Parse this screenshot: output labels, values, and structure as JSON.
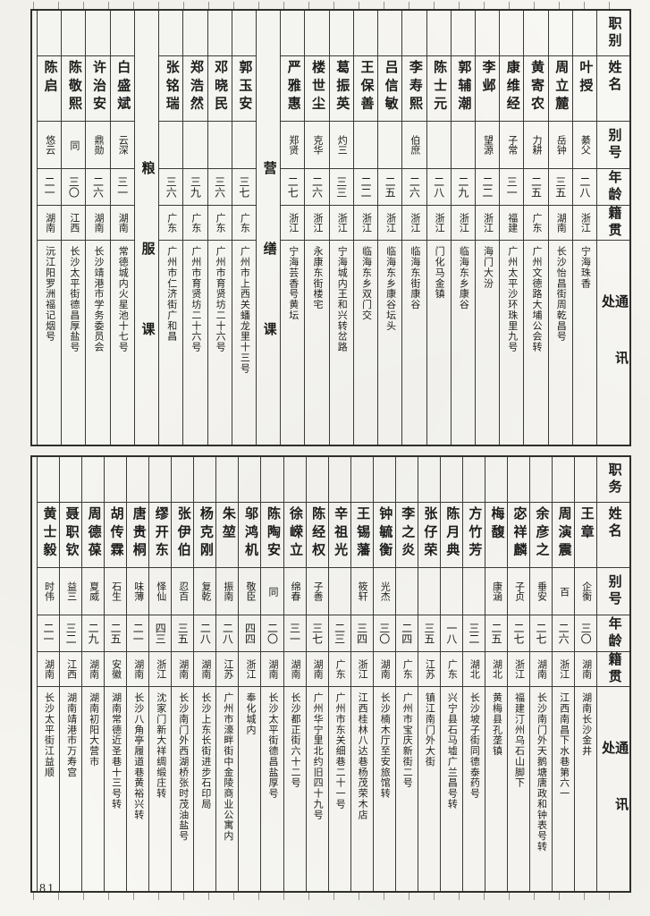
{
  "page": {
    "number": "81",
    "paper_color": "#f5f4ef",
    "ink_color": "#1d1d1d"
  },
  "top_table": {
    "headers": {
      "role": "职别",
      "name": "姓名",
      "alias": "别号",
      "age": "年龄",
      "origin": "籍贯",
      "address": "通讯处"
    },
    "columns": [
      {
        "type": "person",
        "name": "陈启",
        "alias": "悠云",
        "age": "二一",
        "origin": "湖南",
        "address": "沅江阳罗洲福记烟号"
      },
      {
        "type": "person",
        "name": "陈敬熙",
        "alias": "同",
        "age": "三〇",
        "origin": "江西",
        "address": "长沙太平街德昌厚盐号"
      },
      {
        "type": "person",
        "name": "许治安",
        "alias": "鼎勋",
        "age": "二六",
        "origin": "湖南",
        "address": "长沙靖港市学务委员会"
      },
      {
        "type": "person",
        "name": "白盛斌",
        "alias": "云深",
        "age": "三一",
        "origin": "湖南",
        "address": "常德城内火星池十七号"
      },
      {
        "type": "section",
        "label": "粮服课"
      },
      {
        "type": "person",
        "name": "张铭瑞",
        "alias": "",
        "age": "三六",
        "origin": "广东",
        "address": "广州市仁济街广和昌"
      },
      {
        "type": "person",
        "name": "郑浩然",
        "alias": "",
        "age": "三九",
        "origin": "广东",
        "address": "广州市育贤坊二十六号"
      },
      {
        "type": "person",
        "name": "邓晓民",
        "alias": "",
        "age": "三六",
        "origin": "广东",
        "address": "广州市育贤坊二十六号"
      },
      {
        "type": "person",
        "name": "郭玉安",
        "alias": "",
        "age": "三七",
        "origin": "广东",
        "address": "广州市上西关蟠龙里十三号"
      },
      {
        "type": "section",
        "label": "营缮课"
      },
      {
        "type": "person",
        "name": "严雅惠",
        "alias": "郑贤",
        "age": "二七",
        "origin": "浙江",
        "address": "宁海芸香号黄坛"
      },
      {
        "type": "person",
        "name": "楼世尘",
        "alias": "克华",
        "age": "二六",
        "origin": "浙江",
        "address": "永康东街楼宅"
      },
      {
        "type": "person",
        "name": "葛振英",
        "alias": "灼三",
        "age": "三三",
        "origin": "浙江",
        "address": "宁海城内王和兴转岔路"
      },
      {
        "type": "person",
        "name": "王保善",
        "alias": "",
        "age": "二二",
        "origin": "浙江",
        "address": "临海东乡双门交"
      },
      {
        "type": "person",
        "name": "吕信敏",
        "alias": "",
        "age": "二五",
        "origin": "浙江",
        "address": "临海东乡康谷坛头"
      },
      {
        "type": "person",
        "name": "李寿熙",
        "alias": "伯庶",
        "age": "二六",
        "origin": "浙江",
        "address": "临海东街康谷"
      },
      {
        "type": "person",
        "name": "陈士元",
        "alias": "",
        "age": "二八",
        "origin": "浙江",
        "address": "门化马金镇"
      },
      {
        "type": "person",
        "name": "郭辅潮",
        "alias": "",
        "age": "二九",
        "origin": "浙江",
        "address": "临海东乡康谷"
      },
      {
        "type": "person",
        "name": "李邺",
        "alias": "望源",
        "age": "二二",
        "origin": "浙江",
        "address": "海门大汾"
      },
      {
        "type": "person",
        "name": "康维经",
        "alias": "子常",
        "age": "三一",
        "origin": "福建",
        "address": "广州太平沙环珠里九号"
      },
      {
        "type": "person",
        "name": "黄寄农",
        "alias": "力耕",
        "age": "二五",
        "origin": "广东",
        "address": "广州文德路大埔公会转"
      },
      {
        "type": "person",
        "name": "周立麓",
        "alias": "岳钟",
        "age": "三五",
        "origin": "湖南",
        "address": "长沙怡昌街周乾昌号"
      },
      {
        "type": "person",
        "name": "叶授",
        "alias": "綦父",
        "age": "二八",
        "origin": "浙江",
        "address": "宁海珠香"
      }
    ]
  },
  "bottom_table": {
    "headers": {
      "role": "职务",
      "name": "姓名",
      "alias": "别号",
      "age": "年龄",
      "origin": "籍贯",
      "address": "通讯处"
    },
    "columns": [
      {
        "type": "person",
        "name": "黄士毅",
        "alias": "时伟",
        "age": "二一",
        "origin": "湖南",
        "address": "长沙太平街江益顺"
      },
      {
        "type": "person",
        "name": "聂职钦",
        "alias": "益三",
        "age": "三二",
        "origin": "江西",
        "address": "湖南靖港市万寿宫"
      },
      {
        "type": "person",
        "name": "周德葆",
        "alias": "夏威",
        "age": "二九",
        "origin": "湖南",
        "address": "湖南初阳大营市"
      },
      {
        "type": "person",
        "name": "胡传霖",
        "alias": "石生",
        "age": "二五",
        "origin": "安徽",
        "address": "湖南常德近圣巷十三号转"
      },
      {
        "type": "person",
        "name": "唐贵桐",
        "alias": "味薄",
        "age": "二一",
        "origin": "湖南",
        "address": "长沙八角亭履道巷黄裕兴转"
      },
      {
        "type": "person",
        "name": "缪开东",
        "alias": "怿仙",
        "age": "四三",
        "origin": "浙江",
        "address": "沈家门新大祥绸缎庄转"
      },
      {
        "type": "person",
        "name": "张伊伯",
        "alias": "忍百",
        "age": "三五",
        "origin": "湖南",
        "address": "长沙南门外西湖桥张时茂油盐号"
      },
      {
        "type": "person",
        "name": "杨克刚",
        "alias": "复乾",
        "age": "二八",
        "origin": "湖南",
        "address": "长沙上东长街进步石印局"
      },
      {
        "type": "person",
        "name": "朱堃",
        "alias": "振南",
        "age": "二八",
        "origin": "江苏",
        "address": "广州市濠畔街中金陵商业公寓内"
      },
      {
        "type": "person",
        "name": "邬鸿机",
        "alias": "敬臣",
        "age": "四四",
        "origin": "浙江",
        "address": "奉化城内"
      },
      {
        "type": "person",
        "name": "陈陶安",
        "alias": "同",
        "age": "二〇",
        "origin": "湖南",
        "address": "长沙太平街德昌盐厚号"
      },
      {
        "type": "person",
        "name": "徐嵘立",
        "alias": "绵春",
        "age": "三一",
        "origin": "湖南",
        "address": "长沙都正街六十二号"
      },
      {
        "type": "person",
        "name": "陈经权",
        "alias": "子善",
        "age": "三七",
        "origin": "湖南",
        "address": "广州华宁里北约旧四十九号"
      },
      {
        "type": "person",
        "name": "辛祖光",
        "alias": "",
        "age": "二三",
        "origin": "广东",
        "address": "广州市东关细巷二十一号"
      },
      {
        "type": "person",
        "name": "王锡藩",
        "alias": "筱轩",
        "age": "三四",
        "origin": "浙江",
        "address": "江西桂林八达巷杨茂荣木店"
      },
      {
        "type": "person",
        "name": "钟毓衡",
        "alias": "光杰",
        "age": "三〇",
        "origin": "湖南",
        "address": "长沙楠木厅至安旅馆转"
      },
      {
        "type": "person",
        "name": "李之炎",
        "alias": "",
        "age": "二四",
        "origin": "广东",
        "address": "广州市宝庆新街二号"
      },
      {
        "type": "person",
        "name": "张仔荣",
        "alias": "",
        "age": "三五",
        "origin": "江苏",
        "address": "镇江南门外大街"
      },
      {
        "type": "person",
        "name": "陈月典",
        "alias": "",
        "age": "一八",
        "origin": "广东",
        "address": "兴宁县石马墟广兰昌号转"
      },
      {
        "type": "person",
        "name": "方竹芳",
        "alias": "",
        "age": "三二",
        "origin": "湖北",
        "address": "长沙坡子街同德泰药号"
      },
      {
        "type": "person",
        "name": "梅馥",
        "alias": "康涵",
        "age": "二五",
        "origin": "湖北",
        "address": "黄梅县孔垄镇"
      },
      {
        "type": "person",
        "name": "宓祥麟",
        "alias": "子贞",
        "age": "二七",
        "origin": "浙江",
        "address": "福建汀州乌石山脚下"
      },
      {
        "type": "person",
        "name": "余彦之",
        "alias": "垂安",
        "age": "二七",
        "origin": "湖南",
        "address": "长沙南门外天鹅塘唐政和钟表号转"
      },
      {
        "type": "person",
        "name": "周演震",
        "alias": "百",
        "age": "二六",
        "origin": "浙江",
        "address": "江西南昌下水巷第六一"
      },
      {
        "type": "person",
        "name": "王章",
        "alias": "企衡",
        "age": "三〇",
        "origin": "湖南",
        "address": "湖南长沙金井"
      }
    ]
  }
}
